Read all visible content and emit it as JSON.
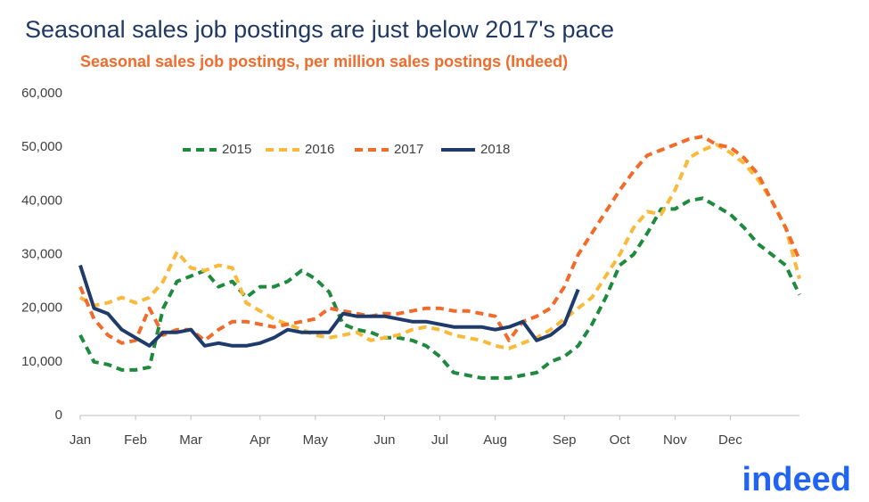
{
  "chart_data": {
    "type": "line",
    "title": "Seasonal sales job postings are just below 2017's pace",
    "subtitle": "Seasonal sales job postings, per million sales postings (Indeed)",
    "logo": "indeed",
    "categories": [
      "Jan",
      null,
      null,
      null,
      "Feb",
      null,
      null,
      null,
      "Mar",
      null,
      null,
      null,
      null,
      "Apr",
      null,
      null,
      null,
      "May",
      null,
      null,
      null,
      null,
      "Jun",
      null,
      null,
      null,
      "Jul",
      null,
      null,
      null,
      "Aug",
      null,
      null,
      null,
      null,
      "Sep",
      null,
      null,
      null,
      "Oct",
      null,
      null,
      null,
      "Nov",
      null,
      null,
      null,
      "Dec",
      null,
      null,
      null,
      null,
      null
    ],
    "series": [
      {
        "name": "2015",
        "color": "#1e8a3e",
        "dashed": true,
        "values": [
          15000,
          10000,
          9500,
          8500,
          8500,
          9000,
          20000,
          25000,
          26000,
          27000,
          24000,
          25000,
          22000,
          24000,
          24000,
          25000,
          27000,
          25500,
          23000,
          17000,
          16000,
          15500,
          14500,
          14500,
          14000,
          13000,
          11000,
          8000,
          7500,
          7000,
          7000,
          7000,
          7500,
          8000,
          10000,
          11000,
          13000,
          17000,
          22000,
          28000,
          30000,
          34000,
          38500,
          38500,
          40000,
          40500,
          39000,
          37500,
          35000,
          32000,
          30000,
          28000,
          22500
        ]
      },
      {
        "name": "2016",
        "color": "#fbb93a",
        "dashed": true,
        "values": [
          22000,
          20500,
          21000,
          22000,
          21000,
          22000,
          25000,
          30500,
          27500,
          27000,
          28000,
          27500,
          21000,
          19500,
          18000,
          17000,
          16000,
          15000,
          14500,
          15000,
          15500,
          14000,
          14500,
          15000,
          16000,
          16500,
          16000,
          15000,
          14500,
          14000,
          13000,
          12500,
          13500,
          14500,
          16000,
          18000,
          20000,
          22000,
          26000,
          30000,
          35000,
          38000,
          37500,
          42000,
          48000,
          49500,
          50500,
          49000,
          47000,
          44000,
          40000,
          35000,
          25500
        ]
      },
      {
        "name": "2017",
        "color": "#f26b2a",
        "dashed": true,
        "values": [
          24000,
          18000,
          15000,
          13500,
          14000,
          20000,
          15000,
          16000,
          16000,
          14000,
          16000,
          17500,
          17500,
          17000,
          16500,
          17000,
          17500,
          18000,
          20000,
          19500,
          19000,
          18500,
          19000,
          19000,
          19500,
          20000,
          20000,
          19500,
          19500,
          19000,
          18500,
          14000,
          17500,
          18500,
          20000,
          24000,
          30000,
          34000,
          38000,
          42000,
          45500,
          48500,
          49500,
          50500,
          51500,
          52000,
          50500,
          50000,
          48000,
          45000,
          40000,
          35000,
          29000
        ]
      },
      {
        "name": "2018",
        "color": "#1f3b6b",
        "dashed": false,
        "values": [
          28000,
          20000,
          19000,
          16000,
          14500,
          13000,
          15500,
          15500,
          16000,
          13000,
          13500,
          13000,
          13000,
          13500,
          14500,
          16000,
          15500,
          15500,
          15500,
          19000,
          18500,
          18500,
          18500,
          18000,
          17500,
          17500,
          17000,
          16500,
          16500,
          16500,
          16000,
          16500,
          17500,
          14000,
          15000,
          17000,
          23500,
          null,
          null,
          null,
          null,
          null,
          null,
          null,
          null,
          null,
          null,
          null,
          null,
          null,
          null,
          null,
          null
        ]
      }
    ],
    "ylim": [
      0,
      60000
    ],
    "yticks": [
      0,
      {
        "value": 10000,
        "label": "10,000"
      },
      {
        "value": 20000,
        "label": "20,000"
      },
      {
        "value": 30000,
        "label": "30,000"
      },
      {
        "value": 40000,
        "label": "40,000"
      },
      {
        "value": 50000,
        "label": "50,000"
      },
      {
        "value": 60000,
        "label": "60,000"
      }
    ],
    "grid": false,
    "legend": "top"
  }
}
